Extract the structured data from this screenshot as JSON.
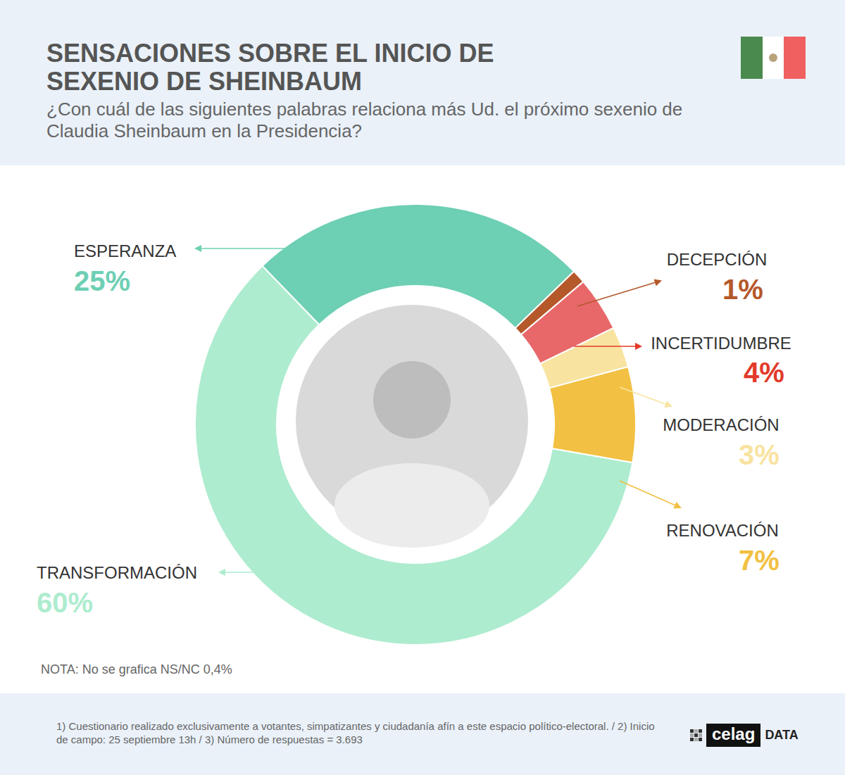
{
  "chart_data": {
    "type": "donut",
    "title": "SENSACIONES SOBRE EL INICIO DE SEXENIO DE SHEINBAUM",
    "subtitle": "¿Con cuál de las siguientes palabras relaciona más Ud. el próximo sexenio de Claudia Sheinbaum en la Presidencia?",
    "categories": [
      "ESPERANZA",
      "DECEPCIÓN",
      "INCERTIDUMBRE",
      "MODERACIÓN",
      "RENOVACIÓN",
      "TRANSFORMACIÓN"
    ],
    "values": [
      25,
      1,
      4,
      3,
      7,
      60
    ],
    "value_labels": [
      "25%",
      "1%",
      "4%",
      "3%",
      "7%",
      "60%"
    ],
    "colors": [
      "#6dcfb3",
      "#b5582a",
      "#e8686a",
      "#f8e3a0",
      "#f2c043",
      "#aeeccf"
    ],
    "data_labels": true,
    "note": "NOTA: No se grafica NS/NC 0,4%",
    "footnote": "1) Cuestionario realizado exclusivamente a votantes, simpatizantes y ciudadanía afín a este espacio político-electoral. / 2) Inicio de campo: 25 septiembre 13h / 3) Número de respuestas = 3.693",
    "source": [
      "celag",
      "DATA"
    ]
  }
}
